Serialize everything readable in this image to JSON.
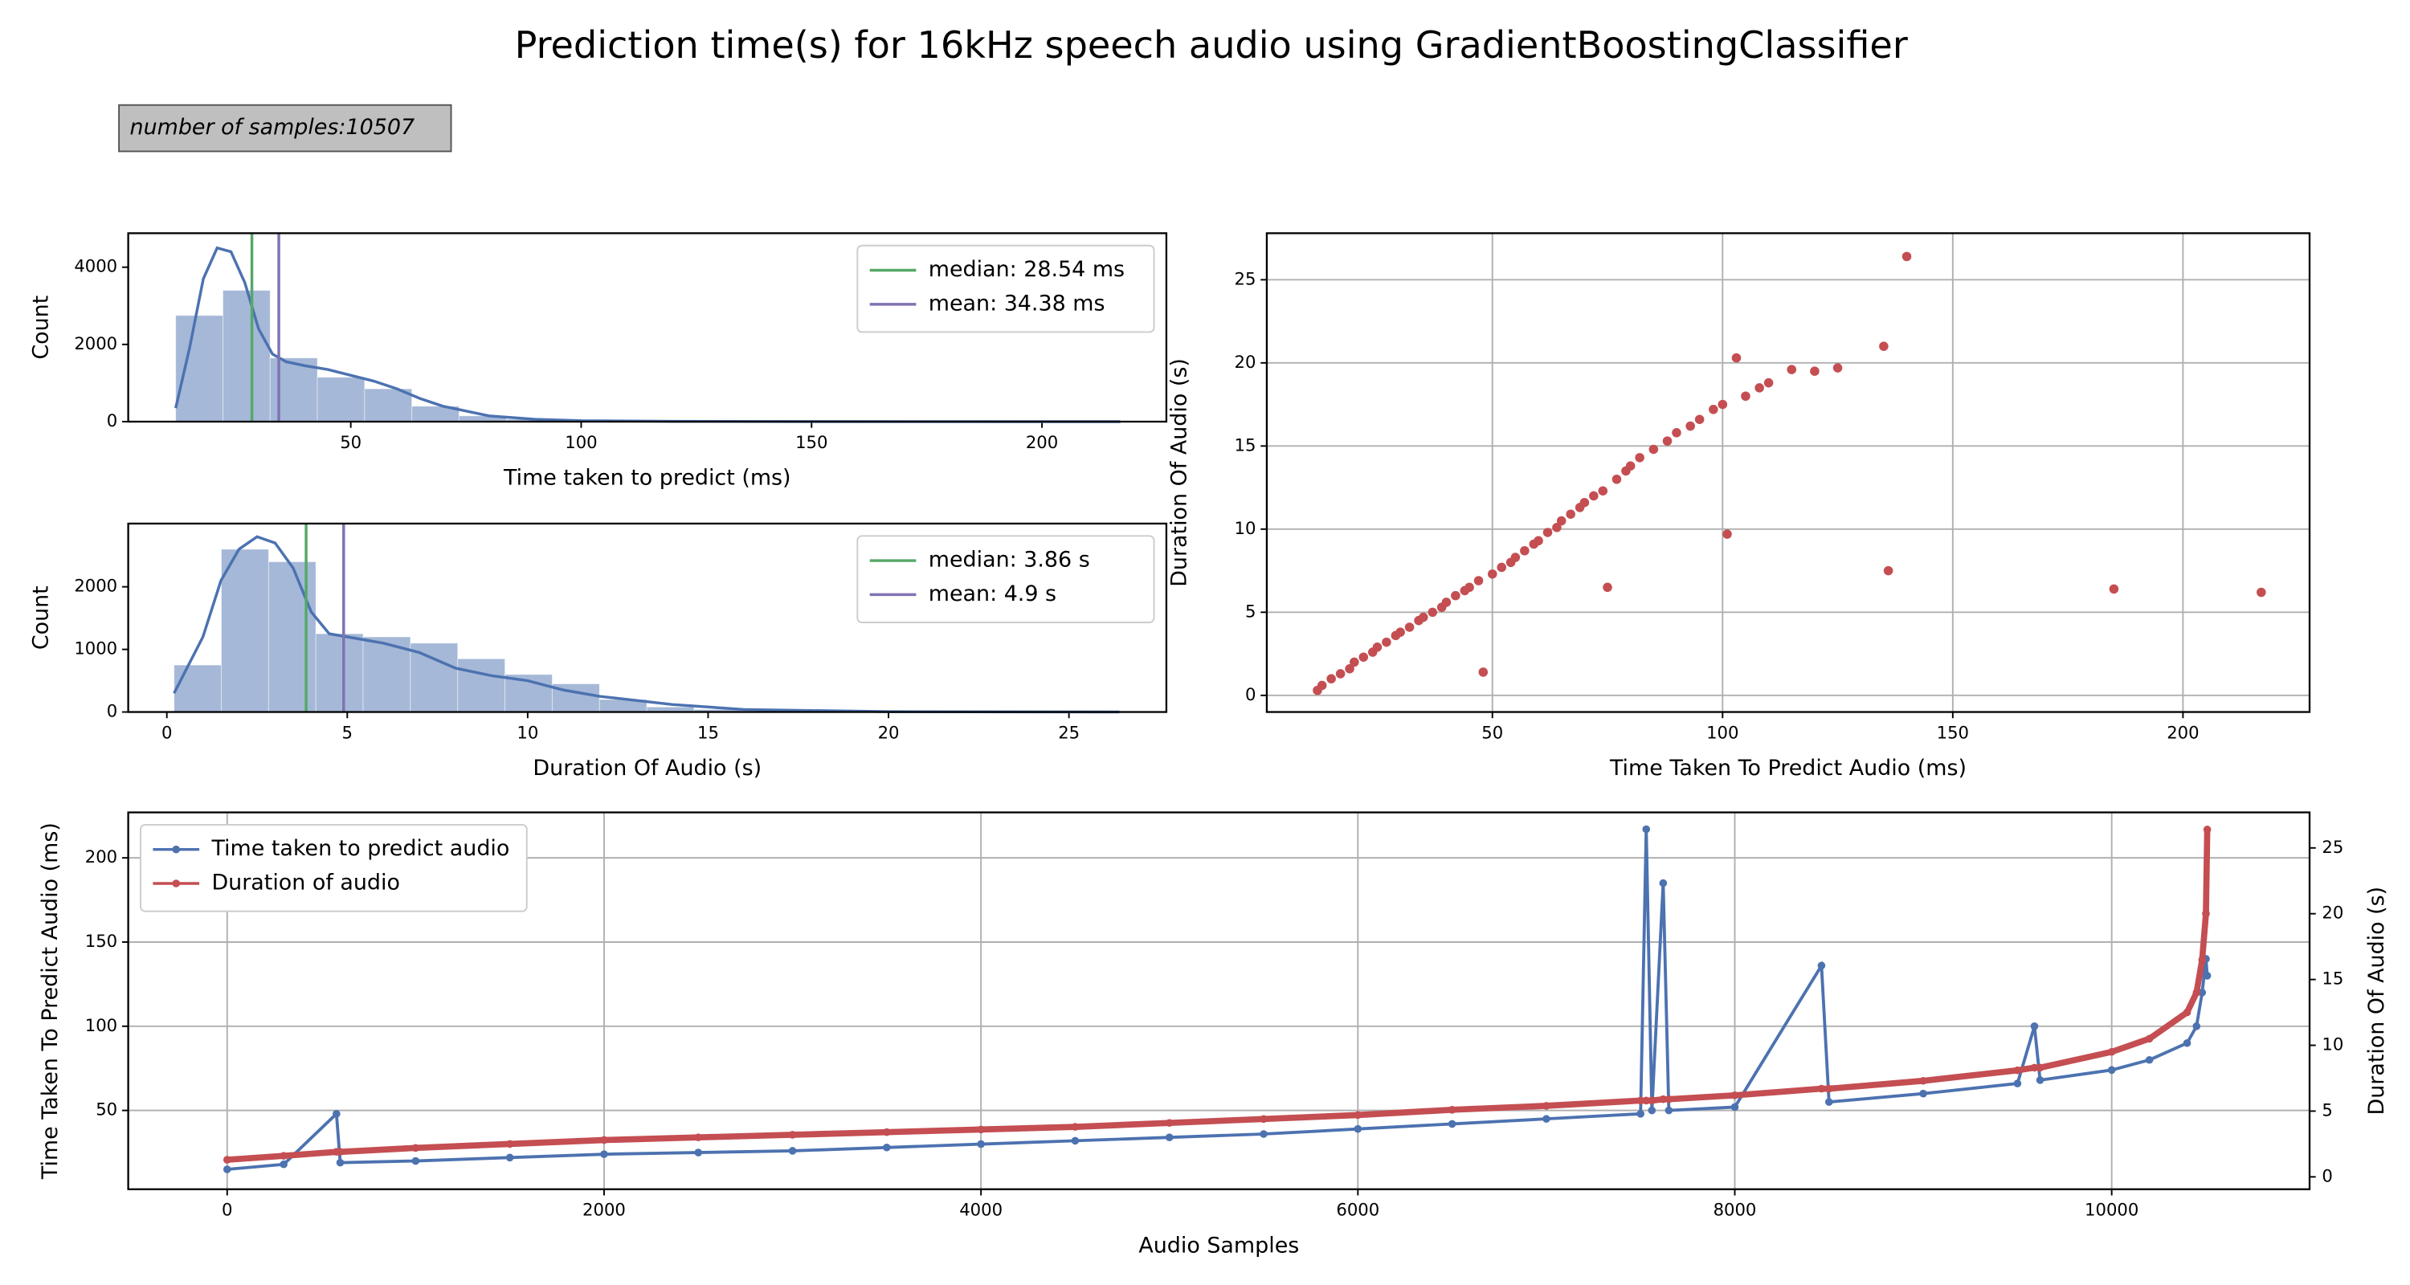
{
  "title": "Prediction time(s) for 16kHz speech audio using GradientBoostingClassifier",
  "annotation": "number of samples:10507",
  "chart_data": [
    {
      "type": "histogram",
      "xlabel": "Time taken to predict (ms)",
      "ylabel": "Count",
      "bins": [
        12,
        22.25,
        32.5,
        42.75,
        53,
        63.25,
        73.5,
        83.75,
        94,
        104.25,
        114.5,
        124.75,
        135,
        145.25,
        155.5,
        165.75,
        176,
        186.25,
        196.5,
        206.75,
        217
      ],
      "counts": [
        2750,
        3400,
        1650,
        1150,
        850,
        400,
        150,
        60,
        30,
        15,
        8,
        5,
        3,
        2,
        1,
        1,
        1,
        1,
        0,
        1
      ],
      "color": "#4c72b0",
      "kde": {
        "color": "#4c72b0",
        "x": [
          12,
          15,
          18,
          21,
          24,
          27,
          30,
          33,
          36,
          40,
          45,
          50,
          55,
          60,
          65,
          70,
          80,
          90,
          100,
          120,
          150,
          217
        ],
        "y": [
          350,
          1900,
          3700,
          4500,
          4400,
          3600,
          2400,
          1750,
          1550,
          1450,
          1350,
          1200,
          1050,
          850,
          600,
          400,
          150,
          60,
          25,
          8,
          2,
          0
        ]
      },
      "vlines": [
        {
          "name": "median: 28.54 ms",
          "value": 28.54,
          "color": "#55a868"
        },
        {
          "name": "mean: 34.38 ms",
          "value": 34.38,
          "color": "#8172b3"
        }
      ],
      "xlim": [
        1.7,
        227
      ],
      "xticks": [
        50,
        100,
        150,
        200
      ],
      "ylim": [
        0,
        4880
      ],
      "yticks": [
        0,
        2000,
        4000
      ],
      "grid": false,
      "legend": "upper right"
    },
    {
      "type": "histogram",
      "xlabel": "Duration Of Audio (s)",
      "ylabel": "Count",
      "bins": [
        0.2,
        1.51,
        2.82,
        4.13,
        5.44,
        6.75,
        8.06,
        9.37,
        10.68,
        11.99,
        13.3,
        14.61,
        15.92,
        17.23,
        18.54,
        19.85,
        21.16,
        22.47,
        23.78,
        25.09,
        26.4
      ],
      "counts": [
        750,
        2600,
        2400,
        1250,
        1200,
        1100,
        850,
        600,
        450,
        200,
        80,
        40,
        20,
        10,
        5,
        3,
        2,
        1,
        0,
        1
      ],
      "color": "#4c72b0",
      "kde": {
        "color": "#4c72b0",
        "x": [
          0.2,
          1,
          1.5,
          2,
          2.5,
          3,
          3.5,
          4,
          4.5,
          5,
          6,
          7,
          8,
          9,
          10,
          11,
          12,
          14,
          16,
          20,
          26.4
        ],
        "y": [
          300,
          1200,
          2100,
          2600,
          2800,
          2700,
          2300,
          1600,
          1250,
          1200,
          1100,
          950,
          700,
          580,
          500,
          350,
          250,
          120,
          40,
          5,
          0
        ]
      },
      "vlines": [
        {
          "name": "median: 3.86 s",
          "value": 3.86,
          "color": "#55a868"
        },
        {
          "name": "mean: 4.9 s",
          "value": 4.9,
          "color": "#8172b3"
        }
      ],
      "xlim": [
        -1.07,
        27.7
      ],
      "xticks": [
        0,
        5,
        10,
        15,
        20,
        25
      ],
      "ylim": [
        0,
        3010
      ],
      "yticks": [
        0,
        1000,
        2000
      ],
      "grid": false,
      "legend": "upper right"
    },
    {
      "type": "scatter",
      "xlabel": "Time Taken To Predict Audio (ms)",
      "ylabel": "Duration Of Audio (s)",
      "color": "#c44e52",
      "x": [
        12,
        13,
        15,
        17,
        19,
        20,
        22,
        24,
        25,
        27,
        29,
        30,
        32,
        34,
        35,
        37,
        39,
        40,
        42,
        44,
        45,
        47,
        48,
        50,
        52,
        54,
        55,
        57,
        59,
        60,
        62,
        64,
        65,
        67,
        69,
        70,
        72,
        74,
        75,
        77,
        79,
        80,
        82,
        85,
        88,
        90,
        93,
        95,
        98,
        100,
        101,
        103,
        105,
        108,
        110,
        115,
        120,
        125,
        135,
        136,
        140,
        185,
        217
      ],
      "y": [
        0.3,
        0.6,
        1.0,
        1.3,
        1.6,
        2.0,
        2.3,
        2.6,
        2.9,
        3.2,
        3.6,
        3.8,
        4.1,
        4.5,
        4.7,
        5.0,
        5.3,
        5.6,
        6.0,
        6.3,
        6.5,
        6.9,
        1.4,
        7.3,
        7.7,
        8.0,
        8.3,
        8.7,
        9.1,
        9.3,
        9.8,
        10.1,
        10.5,
        10.9,
        11.3,
        11.6,
        12.0,
        12.3,
        6.5,
        13.0,
        13.5,
        13.8,
        14.3,
        14.8,
        15.3,
        15.8,
        16.2,
        16.6,
        17.2,
        17.5,
        9.7,
        20.3,
        18.0,
        18.5,
        18.8,
        19.6,
        19.5,
        19.7,
        21.0,
        7.5,
        26.4,
        6.4,
        6.2
      ],
      "xlim": [
        1.0,
        227.5
      ],
      "xticks": [
        50,
        100,
        150,
        200
      ],
      "ylim": [
        -1.0,
        27.8
      ],
      "yticks": [
        0,
        5,
        10,
        15,
        20,
        25
      ],
      "grid": true
    },
    {
      "type": "line",
      "xlabel": "Audio Samples",
      "ylabel": "Time Taken To Predict Audio (ms)",
      "y2label": "Duration Of Audio (s)",
      "x": [
        0,
        300,
        580,
        600,
        1000,
        1500,
        2000,
        2500,
        3000,
        3500,
        4000,
        4500,
        5000,
        5500,
        6000,
        6500,
        7000,
        7500,
        7530,
        7560,
        7620,
        7650,
        8000,
        8460,
        8500,
        9000,
        9500,
        9590,
        9620,
        10000,
        10200,
        10400,
        10450,
        10480,
        10500,
        10507
      ],
      "series": [
        {
          "name": "Time taken to predict audio",
          "color": "#4c72b0",
          "axis": "y",
          "values": [
            15,
            18,
            48,
            19,
            20,
            22,
            24,
            25,
            26,
            28,
            30,
            32,
            34,
            36,
            39,
            42,
            45,
            48,
            217,
            50,
            185,
            50,
            52,
            136,
            55,
            60,
            66,
            100,
            68,
            74,
            80,
            90,
            100,
            120,
            140,
            130
          ]
        },
        {
          "name": "Duration of audio",
          "color": "#c44e52",
          "axis": "y2",
          "values": [
            1.3,
            1.6,
            1.9,
            1.9,
            2.2,
            2.5,
            2.8,
            3.0,
            3.2,
            3.4,
            3.6,
            3.8,
            4.1,
            4.4,
            4.7,
            5.1,
            5.4,
            5.8,
            5.8,
            5.8,
            5.9,
            5.9,
            6.2,
            6.7,
            6.7,
            7.3,
            8.1,
            8.3,
            8.3,
            9.5,
            10.5,
            12.5,
            14,
            16.5,
            20,
            26.4
          ]
        }
      ],
      "xlim": [
        -525,
        11050
      ],
      "xticks": [
        0,
        2000,
        4000,
        6000,
        8000,
        10000
      ],
      "ylim": [
        3.2,
        227
      ],
      "yticks": [
        50,
        100,
        150,
        200
      ],
      "y2lim": [
        -0.94,
        27.7
      ],
      "y2ticks": [
        0,
        5,
        10,
        15,
        20,
        25
      ],
      "grid": true,
      "legend": "upper left"
    }
  ]
}
